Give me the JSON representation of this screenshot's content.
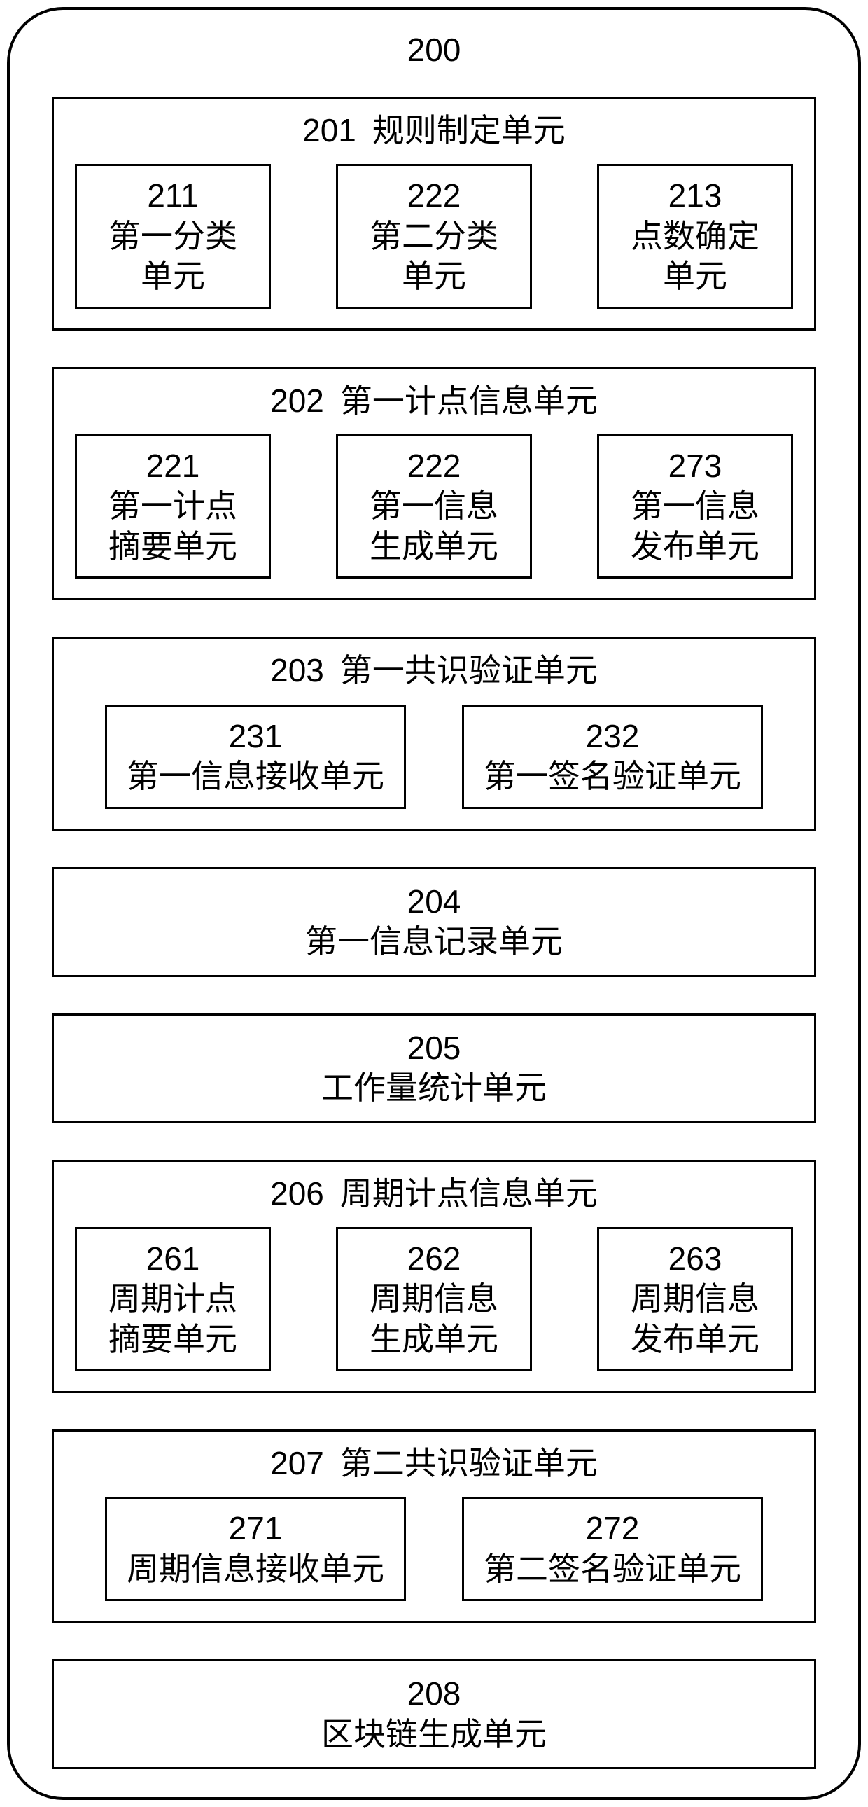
{
  "diagram": {
    "top_label": "200",
    "border_color": "#000000",
    "background_color": "#ffffff",
    "text_color": "#000000",
    "font_family": "KaiTi",
    "border_radius": 80,
    "border_width": 4,
    "blocks": [
      {
        "id": "201",
        "label": "规则制定单元",
        "type": "with_subs_3",
        "subs": [
          {
            "id": "211",
            "lines": [
              "第一分类",
              "单元"
            ]
          },
          {
            "id": "222",
            "lines": [
              "第二分类",
              "单元"
            ]
          },
          {
            "id": "213",
            "lines": [
              "点数确定",
              "单元"
            ]
          }
        ]
      },
      {
        "id": "202",
        "label": "第一计点信息单元",
        "type": "with_subs_3",
        "subs": [
          {
            "id": "221",
            "lines": [
              "第一计点",
              "摘要单元"
            ]
          },
          {
            "id": "222",
            "lines": [
              "第一信息",
              "生成单元"
            ]
          },
          {
            "id": "273",
            "lines": [
              "第一信息",
              "发布单元"
            ]
          }
        ]
      },
      {
        "id": "203",
        "label": "第一共识验证单元",
        "type": "with_subs_2",
        "subs": [
          {
            "id": "231",
            "lines": [
              "第一信息接收单元"
            ]
          },
          {
            "id": "232",
            "lines": [
              "第一签名验证单元"
            ]
          }
        ]
      },
      {
        "id": "204",
        "label": "第一信息记录单元",
        "type": "simple"
      },
      {
        "id": "205",
        "label": "工作量统计单元",
        "type": "simple"
      },
      {
        "id": "206",
        "label": "周期计点信息单元",
        "type": "with_subs_3",
        "subs": [
          {
            "id": "261",
            "lines": [
              "周期计点",
              "摘要单元"
            ]
          },
          {
            "id": "262",
            "lines": [
              "周期信息",
              "生成单元"
            ]
          },
          {
            "id": "263",
            "lines": [
              "周期信息",
              "发布单元"
            ]
          }
        ]
      },
      {
        "id": "207",
        "label": "第二共识验证单元",
        "type": "with_subs_2",
        "subs": [
          {
            "id": "271",
            "lines": [
              "周期信息接收单元"
            ]
          },
          {
            "id": "272",
            "lines": [
              "第二签名验证单元"
            ]
          }
        ]
      },
      {
        "id": "208",
        "label": "区块链生成单元",
        "type": "simple"
      }
    ]
  }
}
